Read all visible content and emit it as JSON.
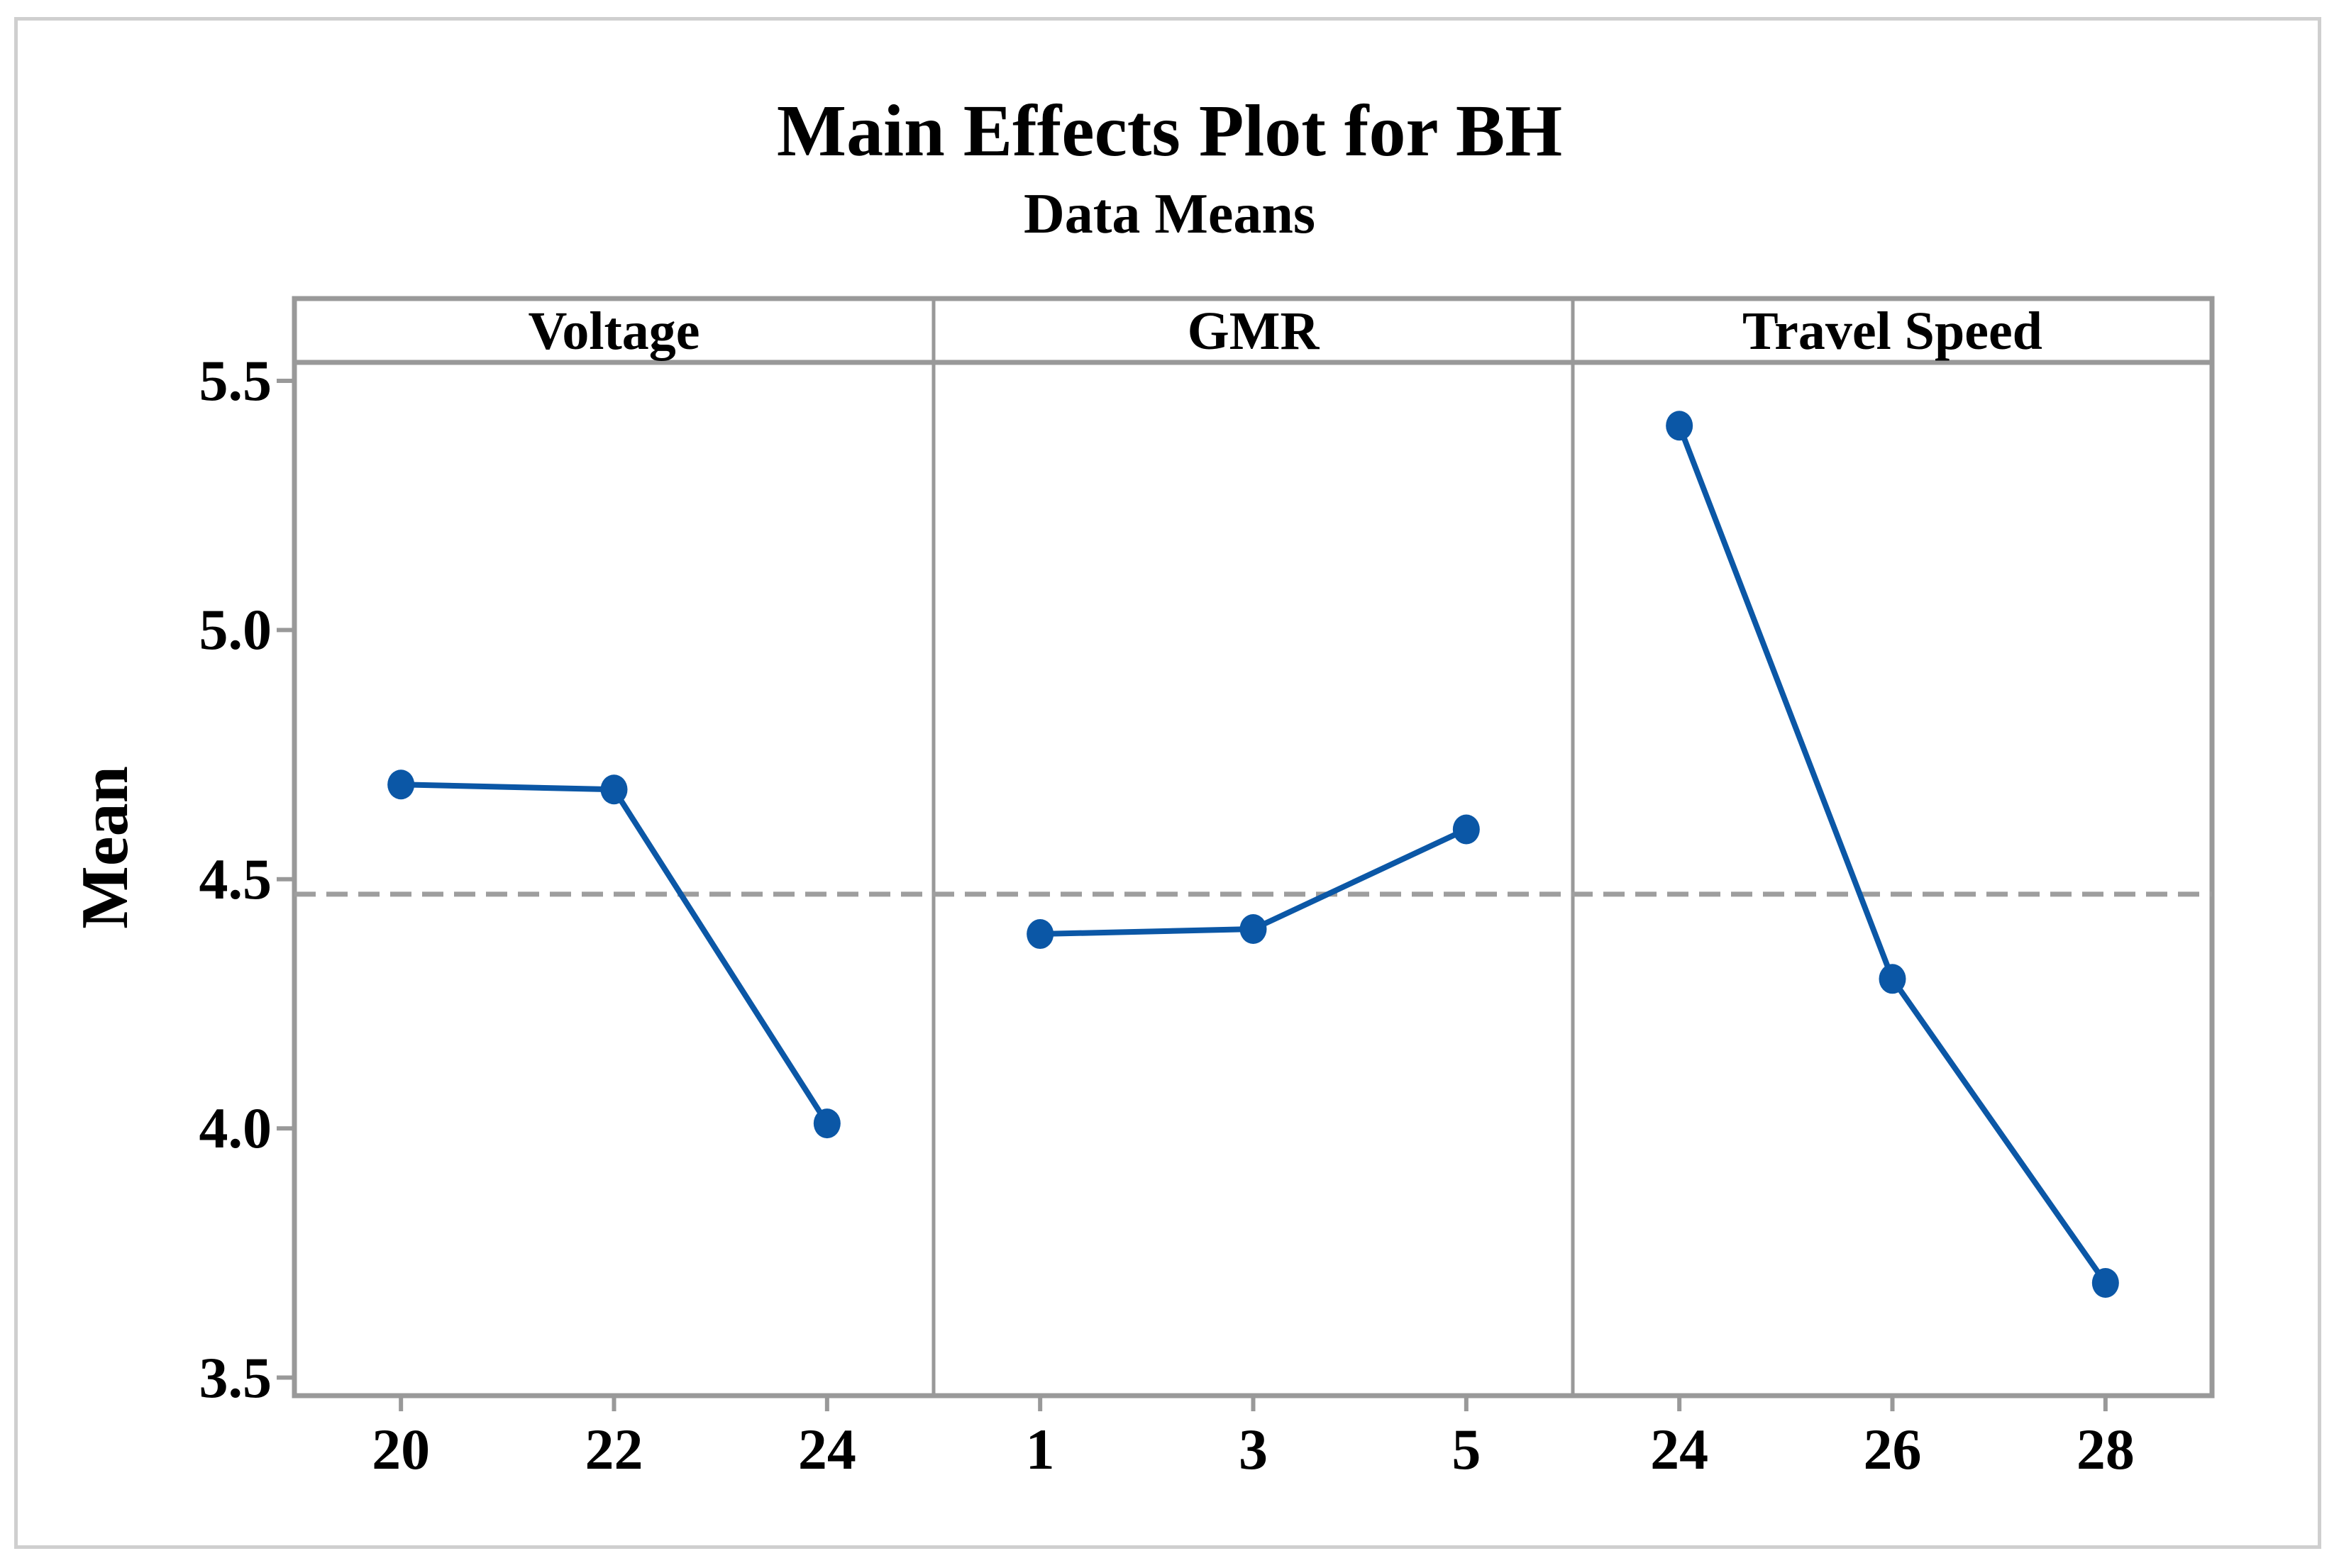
{
  "page": {
    "background_color": "#ffffff",
    "canvas_border_color": "#cfcfcf"
  },
  "chart_data": {
    "type": "line",
    "title": "Main Effects Plot for BH",
    "subtitle": "Data Means",
    "ylabel": "Mean",
    "ylim": [
      3.46,
      5.55
    ],
    "yticks": [
      "5.5",
      "5.0",
      "4.5",
      "4.0",
      "3.5"
    ],
    "ytick_values": [
      5.5,
      5.0,
      4.5,
      4.0,
      3.5
    ],
    "grid": "off",
    "legend": "none",
    "line_color": "#0b57a6",
    "marker": "filled-circle",
    "frame_color": "#999999",
    "text_color": "#000000",
    "reference_line": {
      "value": 4.47,
      "style": "dashed",
      "color": "#9e9e9e",
      "meaning": "overall data mean"
    },
    "panels": [
      {
        "label": "Voltage",
        "categories": [
          "20",
          "22",
          "24"
        ],
        "values": [
          4.69,
          4.68,
          4.01
        ]
      },
      {
        "label": "GMR",
        "categories": [
          "1",
          "3",
          "5"
        ],
        "values": [
          4.39,
          4.4,
          4.6
        ]
      },
      {
        "label": "Travel Speed",
        "categories": [
          "24",
          "26",
          "28"
        ],
        "values": [
          5.41,
          4.3,
          3.69
        ]
      }
    ]
  }
}
